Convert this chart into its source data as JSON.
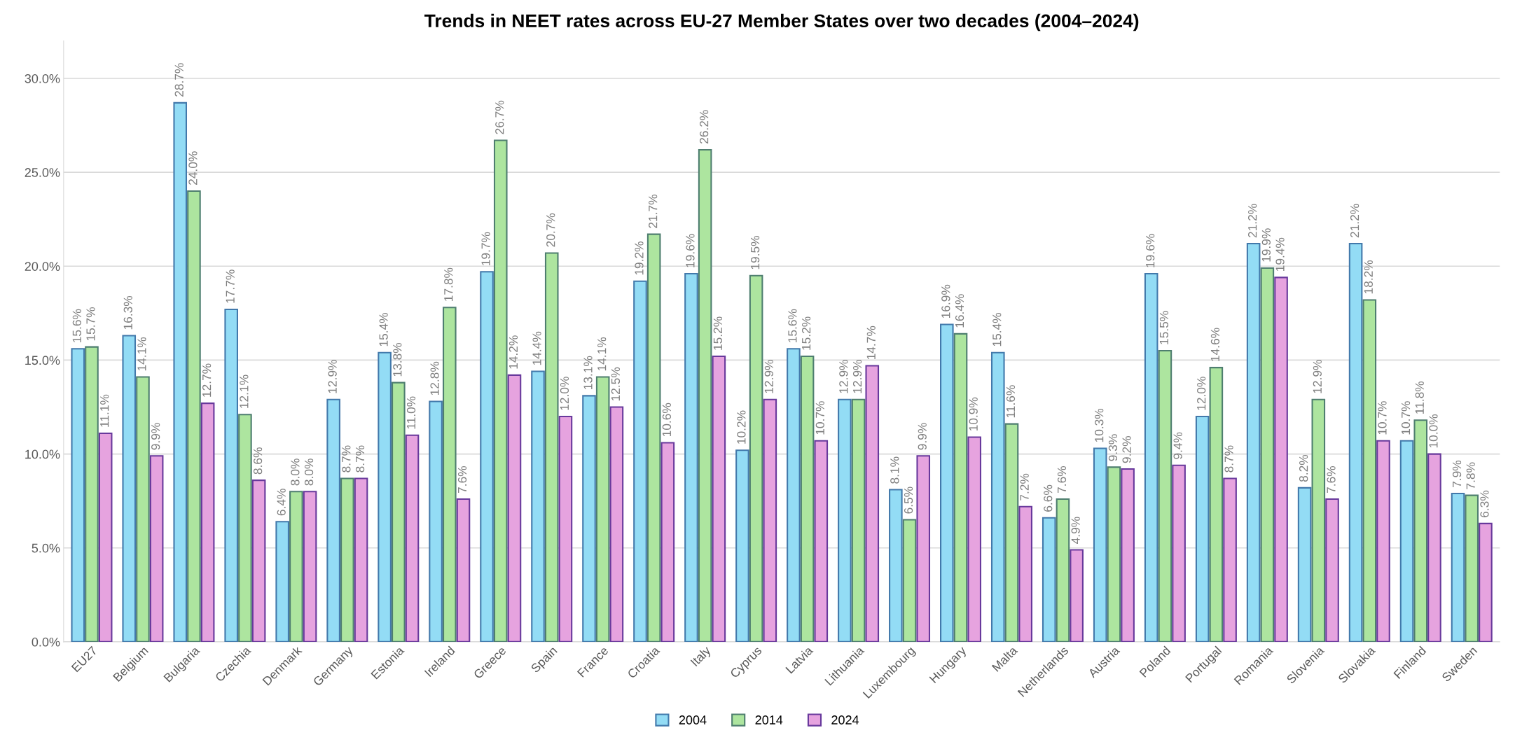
{
  "chart_data": {
    "type": "bar",
    "title": "Trends in NEET rates across EU-27 Member States over two decades (2004–2024)",
    "categories": [
      "EU27",
      "Belgium",
      "Bulgaria",
      "Czechia",
      "Denmark",
      "Germany",
      "Estonia",
      "Ireland",
      "Greece",
      "Spain",
      "France",
      "Croatia",
      "Italy",
      "Cyprus",
      "Latvia",
      "Lithuania",
      "Luxembourg",
      "Hungary",
      "Malta",
      "Netherlands",
      "Austria",
      "Poland",
      "Portugal",
      "Romania",
      "Slovenia",
      "Slovakia",
      "Finland",
      "Sweden"
    ],
    "series": [
      {
        "name": "2004",
        "color": "#93dcf5",
        "values": [
          15.6,
          16.3,
          28.7,
          17.7,
          6.4,
          12.9,
          15.4,
          12.8,
          19.7,
          14.4,
          13.1,
          19.2,
          19.6,
          10.2,
          15.6,
          12.9,
          8.1,
          16.9,
          15.4,
          6.6,
          10.3,
          19.6,
          12.0,
          21.2,
          8.2,
          21.2,
          10.7,
          7.9
        ],
        "value_labels": [
          "15.6%",
          "16.3%",
          "28.7%",
          "17.7%",
          "6.4%",
          "12.9%",
          "15.4%",
          "12.8%",
          "19.7%",
          "14.4%",
          "13.1%",
          "19.2%",
          "19.6%",
          "10.2%",
          "15.6%",
          "12.9%",
          "8.1%",
          "16.9%",
          "15.4%",
          "6.6%",
          "10.3%",
          "19.6%",
          "12.0%",
          "21.2%",
          "8.2%",
          "21.2%",
          "10.7%",
          "7.9%"
        ]
      },
      {
        "name": "2014",
        "color": "#ade59f",
        "values": [
          15.7,
          14.1,
          24.0,
          12.1,
          8.0,
          8.7,
          13.8,
          17.8,
          26.7,
          20.7,
          14.1,
          21.7,
          26.2,
          19.5,
          15.2,
          12.9,
          6.5,
          16.4,
          11.6,
          7.6,
          9.3,
          15.5,
          14.6,
          19.9,
          12.9,
          18.2,
          11.8,
          7.8
        ],
        "value_labels": [
          "15.7%",
          "14.1%",
          "24.0%",
          "12.1%",
          "8.0%",
          "8.7%",
          "13.8%",
          "17.8%",
          "26.7%",
          "20.7%",
          "14.1%",
          "21.7%",
          "26.2%",
          "19.5%",
          "15.2%",
          "12.9%",
          "6.5%",
          "16.4%",
          "11.6%",
          "7.6%",
          "9.3%",
          "15.5%",
          "14.6%",
          "19.9%",
          "12.9%",
          "18.2%",
          "11.8%",
          "7.8%"
        ]
      },
      {
        "name": "2024",
        "color": "#e6a3df",
        "values": [
          11.1,
          9.9,
          12.7,
          8.6,
          8.0,
          8.7,
          11.0,
          7.6,
          14.2,
          12.0,
          12.5,
          10.6,
          15.2,
          12.9,
          10.7,
          14.7,
          9.9,
          10.9,
          7.2,
          4.9,
          9.2,
          9.4,
          8.7,
          19.4,
          7.6,
          10.7,
          10.0,
          6.3
        ],
        "value_labels": [
          "11.1%",
          "9.9%",
          "12.7%",
          "8.6%",
          "8.0%",
          "8.7%",
          "11.0%",
          "7.6%",
          "14.2%",
          "12.0%",
          "12.5%",
          "10.6%",
          "15.2%",
          "12.9%",
          "10.7%",
          "14.7%",
          "9.9%",
          "10.9%",
          "7.2%",
          "4.9%",
          "9.2%",
          "9.4%",
          "8.7%",
          "19.4%",
          "7.6%",
          "10.7%",
          "10.0%",
          "6.3%"
        ]
      }
    ],
    "ylim": [
      0,
      32
    ],
    "yticks": [
      {
        "value": 0,
        "label": "0.0%"
      },
      {
        "value": 5,
        "label": "5.0%"
      },
      {
        "value": 10,
        "label": "10.0%"
      },
      {
        "value": 15,
        "label": "15.0%"
      },
      {
        "value": 20,
        "label": "20.0%"
      },
      {
        "value": 25,
        "label": "25.0%"
      },
      {
        "value": 30,
        "label": "30.0%"
      }
    ],
    "grid": "y",
    "legend": "bottom"
  }
}
